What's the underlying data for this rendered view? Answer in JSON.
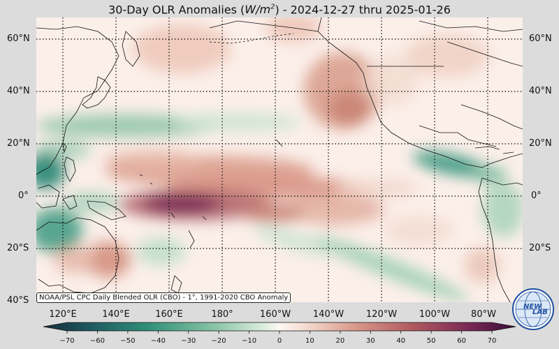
{
  "title": {
    "prefix": "30-Day OLR Anomalies (",
    "unit_base": "W/m",
    "unit_exp": "2",
    "suffix": ") - 2024-12-27 thru 2025-01-26"
  },
  "latitude_labels": [
    "60°N",
    "40°N",
    "20°N",
    "0°",
    "20°S",
    "40°S"
  ],
  "longitude_labels": [
    "120°E",
    "140°E",
    "160°E",
    "180°",
    "160°W",
    "140°W",
    "120°W",
    "100°W",
    "80°W"
  ],
  "source_note": "NOAA/PSL CPC Daily Blended OLR (CBO) - 1°, 1991-2020 CBO Anomaly",
  "colorbar": {
    "ticks": [
      "−70",
      "−60",
      "−50",
      "−40",
      "−30",
      "−20",
      "−10",
      "0",
      "10",
      "20",
      "30",
      "40",
      "50",
      "60",
      "70"
    ],
    "range": [
      -70,
      70
    ],
    "colors": {
      "strong_negative": "#1a3a4a",
      "negative": "#2f8f78",
      "weak_negative": "#b9dcc6",
      "neutral": "#fdf6f2",
      "weak_positive": "#f0cfc2",
      "positive": "#c27a6a",
      "strong_positive": "#5a1848"
    }
  },
  "logo": {
    "text_left": "NEW",
    "text_right": "LAB",
    "icon": "globe-logo-icon"
  }
}
